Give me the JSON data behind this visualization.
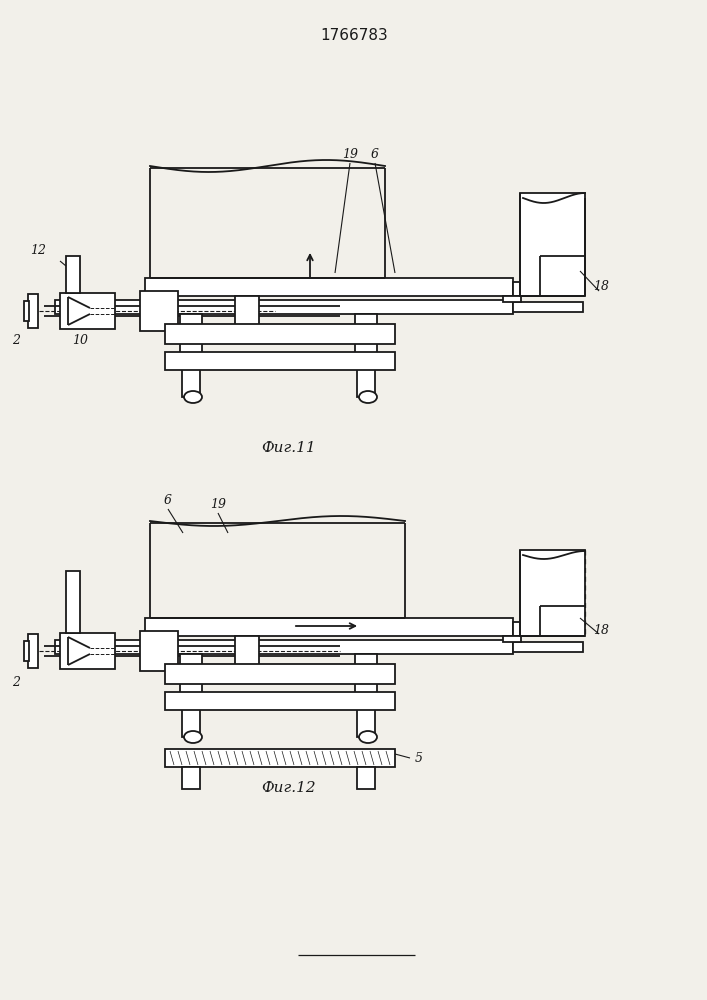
{
  "title": "1766783",
  "fig11_label": "Фиг.11",
  "fig12_label": "Фиг.12",
  "lc": "#1a1a1a",
  "bg": "#f2f0ea",
  "lw": 1.3
}
